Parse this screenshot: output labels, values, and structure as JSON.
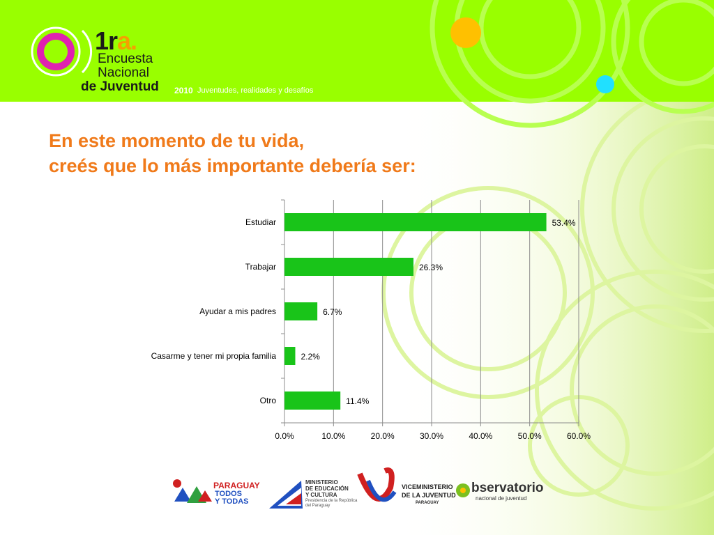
{
  "header": {
    "logo_1": "1r",
    "logo_1_suffix": "a.",
    "logo_line1": "Encuesta",
    "logo_line2": "Nacional",
    "logo_line3": "de Juventud",
    "year": "2010",
    "tagline": "Juventudes, realidades y desafíos"
  },
  "title": {
    "line1": "En este momento de tu vida,",
    "line2": "creés que lo más importante debería ser:"
  },
  "chart_data": {
    "type": "bar",
    "orientation": "horizontal",
    "categories": [
      "Estudiar",
      "Trabajar",
      "Ayudar a mis padres",
      "Casarme y tener mi propia familia",
      "Otro"
    ],
    "values": [
      53.4,
      26.3,
      6.7,
      2.2,
      11.4
    ],
    "value_labels": [
      "53.4%",
      "26.3%",
      "6.7%",
      "2.2%",
      "11.4%"
    ],
    "xlim": [
      0,
      60
    ],
    "x_ticks": [
      "0.0%",
      "10.0%",
      "20.0%",
      "30.0%",
      "40.0%",
      "50.0%",
      "60.0%"
    ],
    "bar_color": "#19c419",
    "grid": true,
    "legend": "none"
  },
  "footer": {
    "logo1_line1": "PARAGUAY",
    "logo1_line2": "TODOS",
    "logo1_line3": "Y TODAS",
    "logo2_line1": "MINISTERIO",
    "logo2_line2": "DE EDUCACIÓN",
    "logo2_line3": "Y CULTURA",
    "logo2_line4": "Presidencia de la República",
    "logo2_line5": "del Paraguay",
    "logo3_line1": "VICEMINISTERIO",
    "logo3_line2": "DE LA JUVENTUD",
    "logo3_line3": "PARAGUAY",
    "logo4_line1": "bservatorio",
    "logo4_line2": "nacional de juventud"
  },
  "colors": {
    "header_green": "#99ff00",
    "title_orange": "#f07a1a",
    "accent_magenta": "#e020b0",
    "accent_yellow": "#ffc000",
    "accent_cyan": "#20e0ff"
  }
}
